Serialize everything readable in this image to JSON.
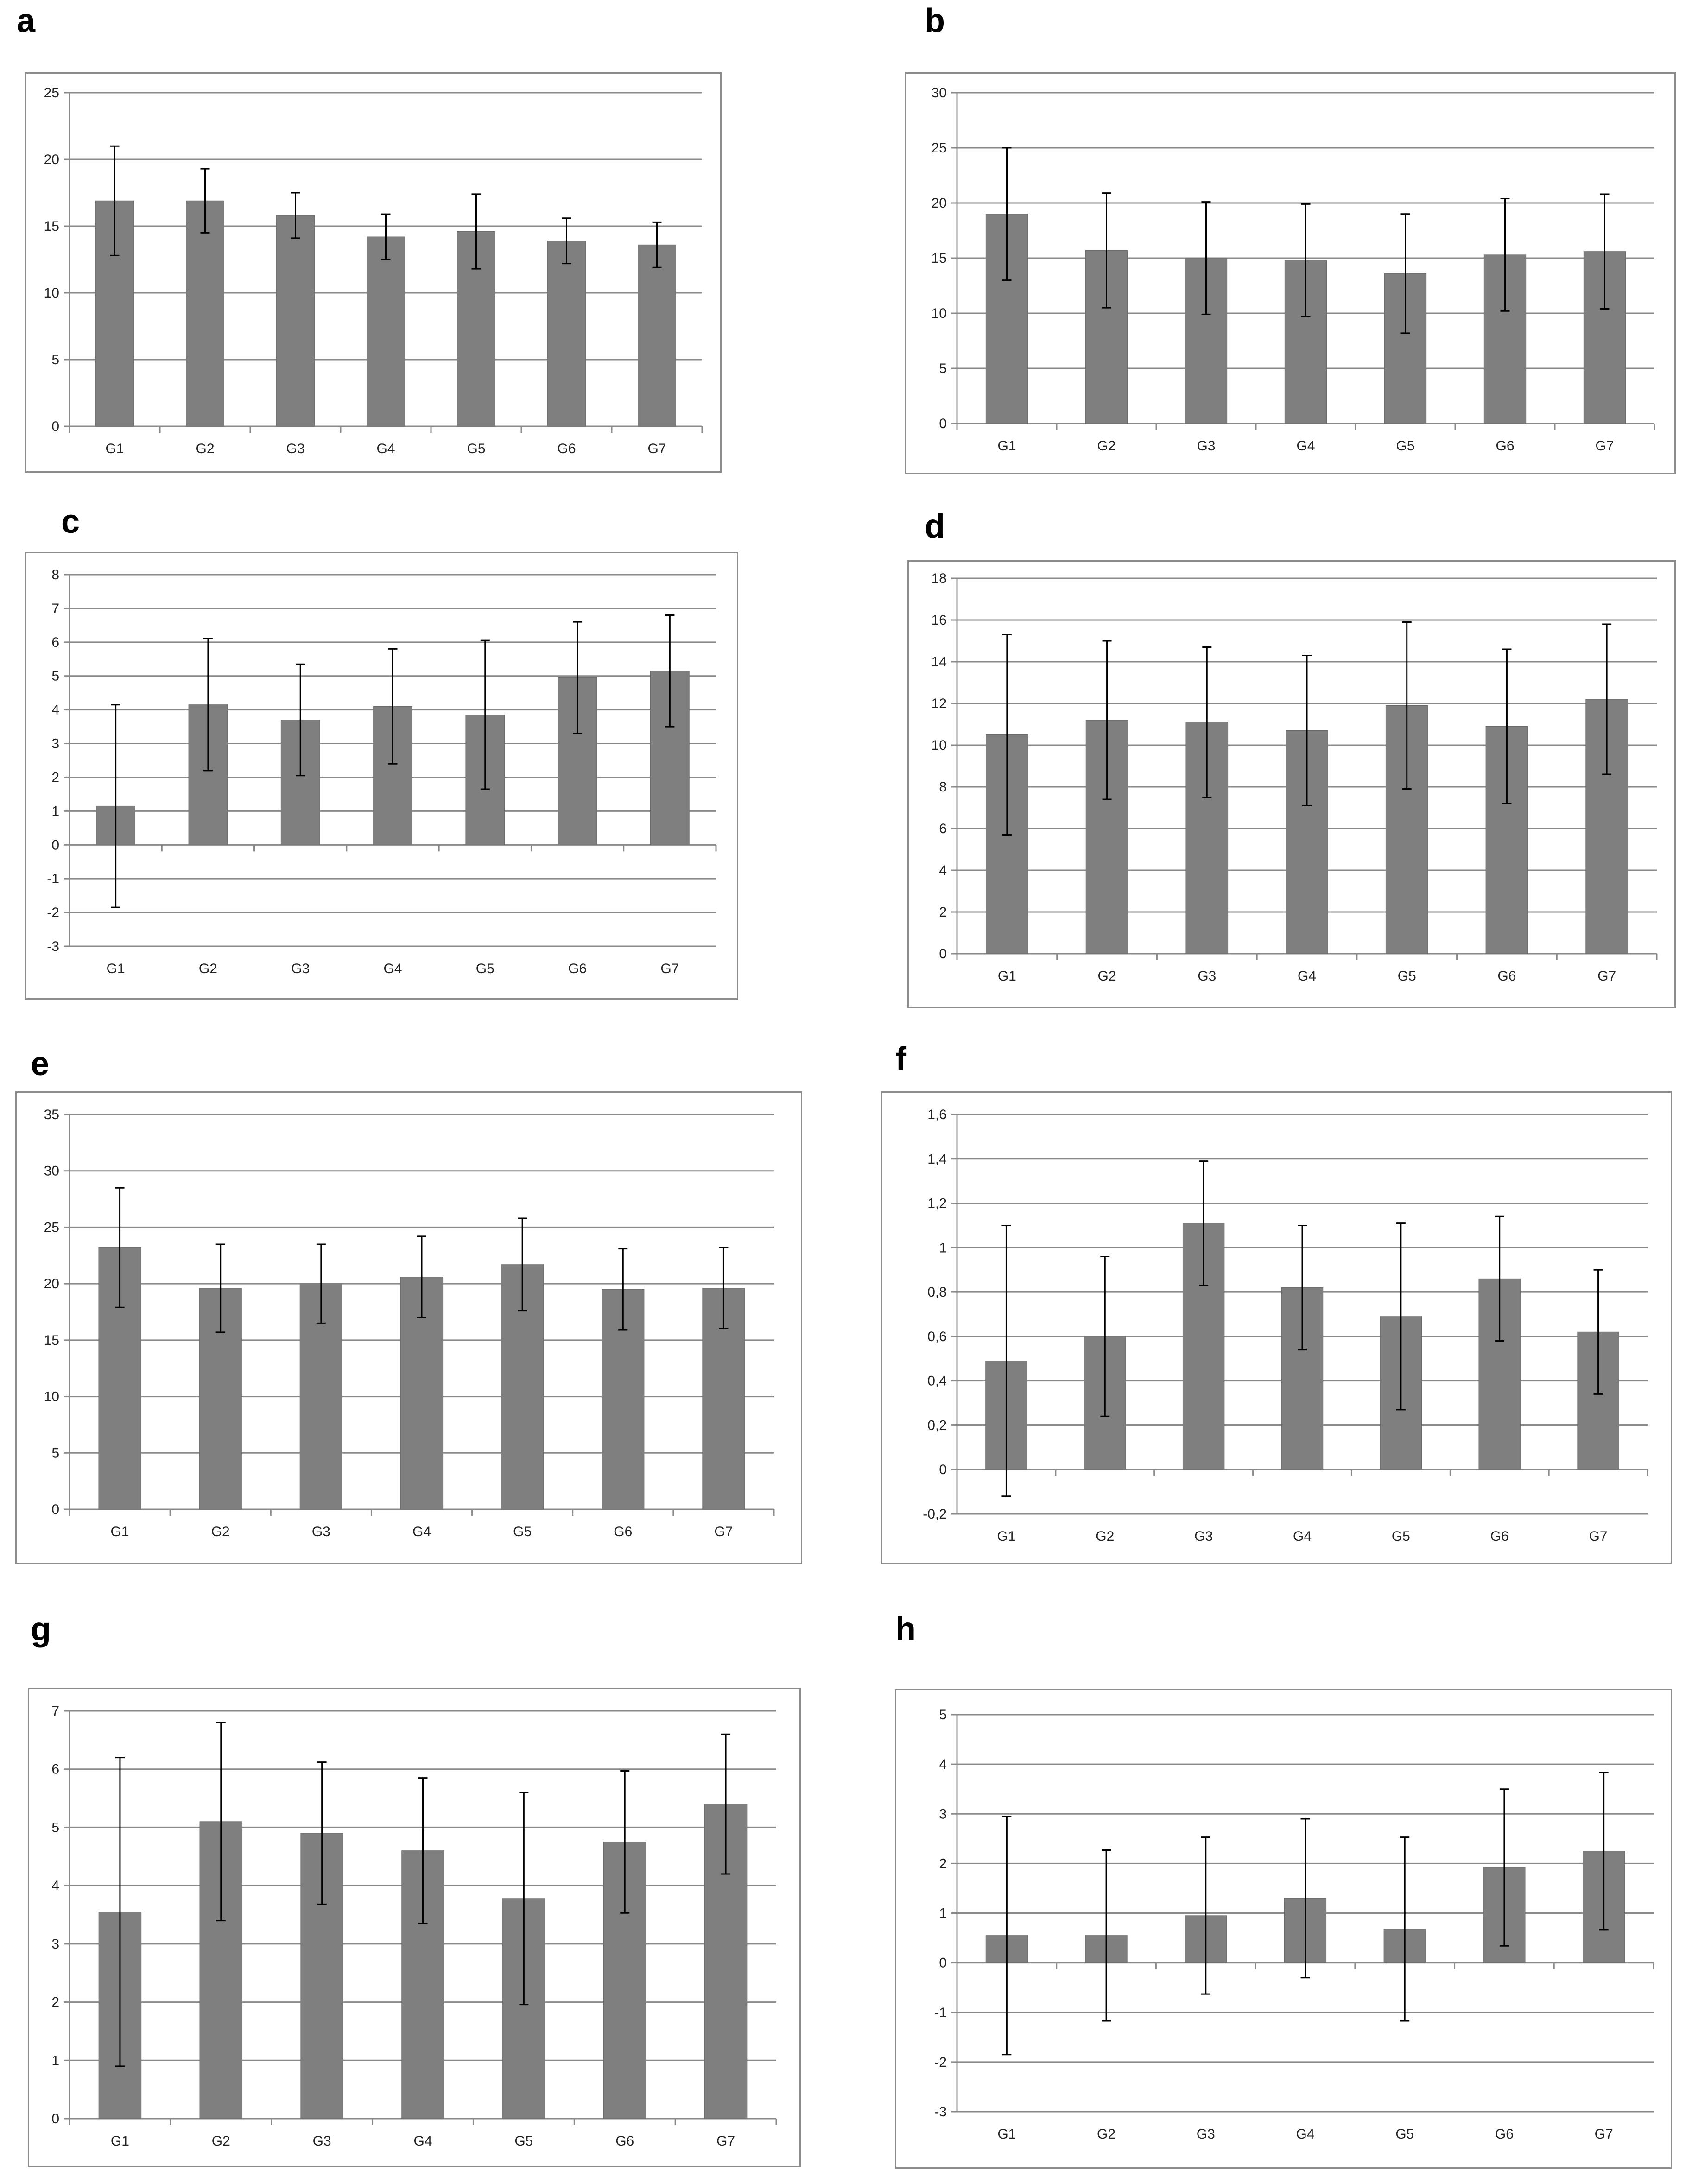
{
  "chart_data": [
    {
      "panel": "a",
      "type": "bar",
      "error_bars": true,
      "grid": true,
      "categories": [
        "G1",
        "G2",
        "G3",
        "G4",
        "G5",
        "G6",
        "G7"
      ],
      "values": [
        16.9,
        16.9,
        15.8,
        14.2,
        14.6,
        13.9,
        13.6
      ],
      "error": [
        4.1,
        2.4,
        1.7,
        1.7,
        2.8,
        1.7,
        1.7
      ],
      "yticks": [
        "0",
        "5",
        "10",
        "15",
        "20",
        "25"
      ],
      "ylim": [
        0,
        25
      ],
      "ystep": 5,
      "color": "#7f7f7f"
    },
    {
      "panel": "b",
      "type": "bar",
      "error_bars": true,
      "grid": true,
      "categories": [
        "G1",
        "G2",
        "G3",
        "G4",
        "G5",
        "G6",
        "G7"
      ],
      "values": [
        19.0,
        15.7,
        15.0,
        14.8,
        13.6,
        15.3,
        15.6
      ],
      "error": [
        6.0,
        5.2,
        5.1,
        5.1,
        5.4,
        5.1,
        5.2
      ],
      "yticks": [
        "0",
        "5",
        "10",
        "15",
        "20",
        "25",
        "30"
      ],
      "ylim": [
        0,
        30
      ],
      "ystep": 5,
      "color": "#7f7f7f"
    },
    {
      "panel": "c",
      "type": "bar",
      "error_bars": true,
      "grid": true,
      "categories": [
        "G1",
        "G2",
        "G3",
        "G4",
        "G5",
        "G6",
        "G7"
      ],
      "values": [
        1.15,
        4.15,
        3.7,
        4.1,
        3.85,
        4.95,
        5.15
      ],
      "error": [
        3.0,
        1.95,
        1.65,
        1.7,
        2.2,
        1.65,
        1.65
      ],
      "yticks": [
        "-3",
        "-2",
        "-1",
        "0",
        "1",
        "2",
        "3",
        "4",
        "5",
        "6",
        "7",
        "8"
      ],
      "ylim": [
        -3,
        8
      ],
      "ystep": 1,
      "color": "#7f7f7f"
    },
    {
      "panel": "d",
      "type": "bar",
      "error_bars": true,
      "grid": true,
      "categories": [
        "G1",
        "G2",
        "G3",
        "G4",
        "G5",
        "G6",
        "G7"
      ],
      "values": [
        10.5,
        11.2,
        11.1,
        10.7,
        11.9,
        10.9,
        12.2
      ],
      "error": [
        4.8,
        3.8,
        3.6,
        3.6,
        4.0,
        3.7,
        3.6
      ],
      "yticks": [
        "0",
        "2",
        "4",
        "6",
        "8",
        "10",
        "12",
        "14",
        "16",
        "18"
      ],
      "ylim": [
        0,
        18
      ],
      "ystep": 2,
      "color": "#7f7f7f"
    },
    {
      "panel": "e",
      "type": "bar",
      "error_bars": true,
      "grid": true,
      "categories": [
        "G1",
        "G2",
        "G3",
        "G4",
        "G5",
        "G6",
        "G7"
      ],
      "values": [
        23.2,
        19.6,
        20.0,
        20.6,
        21.7,
        19.5,
        19.6
      ],
      "error": [
        5.3,
        3.9,
        3.5,
        3.6,
        4.1,
        3.6,
        3.6
      ],
      "yticks": [
        "0",
        "5",
        "10",
        "15",
        "20",
        "25",
        "30",
        "35"
      ],
      "ylim": [
        0,
        35
      ],
      "ystep": 5,
      "color": "#7f7f7f"
    },
    {
      "panel": "f",
      "type": "bar",
      "error_bars": true,
      "grid": true,
      "categories": [
        "G1",
        "G2",
        "G3",
        "G4",
        "G5",
        "G6",
        "G7"
      ],
      "values": [
        0.49,
        0.6,
        1.11,
        0.82,
        0.69,
        0.86,
        0.62
      ],
      "error": [
        0.61,
        0.36,
        0.28,
        0.28,
        0.42,
        0.28,
        0.28
      ],
      "yticks": [
        "-0,2",
        "0",
        "0,2",
        "0,4",
        "0,6",
        "0,8",
        "1",
        "1,2",
        "1,4",
        "1,6"
      ],
      "ylim": [
        -0.2,
        1.6
      ],
      "ystep": 0.2,
      "color": "#7f7f7f"
    },
    {
      "panel": "g",
      "type": "bar",
      "error_bars": true,
      "grid": true,
      "categories": [
        "G1",
        "G2",
        "G3",
        "G4",
        "G5",
        "G6",
        "G7"
      ],
      "values": [
        3.55,
        5.1,
        4.9,
        4.6,
        3.78,
        4.75,
        5.4
      ],
      "error": [
        2.65,
        1.7,
        1.22,
        1.25,
        1.82,
        1.22,
        1.2
      ],
      "yticks": [
        "0",
        "1",
        "2",
        "3",
        "4",
        "5",
        "6",
        "7"
      ],
      "ylim": [
        0,
        7
      ],
      "ystep": 1,
      "color": "#7f7f7f"
    },
    {
      "panel": "h",
      "type": "bar",
      "error_bars": true,
      "grid": true,
      "categories": [
        "G1",
        "G2",
        "G3",
        "G4",
        "G5",
        "G6",
        "G7"
      ],
      "values": [
        0.55,
        0.55,
        0.95,
        1.3,
        0.68,
        1.92,
        2.25
      ],
      "error": [
        2.4,
        1.72,
        1.58,
        1.6,
        1.85,
        1.58,
        1.58
      ],
      "yticks": [
        "-3",
        "-2",
        "-1",
        "0",
        "1",
        "2",
        "3",
        "4",
        "5"
      ],
      "ylim": [
        -3,
        5
      ],
      "ystep": 1,
      "color": "#7f7f7f"
    }
  ]
}
